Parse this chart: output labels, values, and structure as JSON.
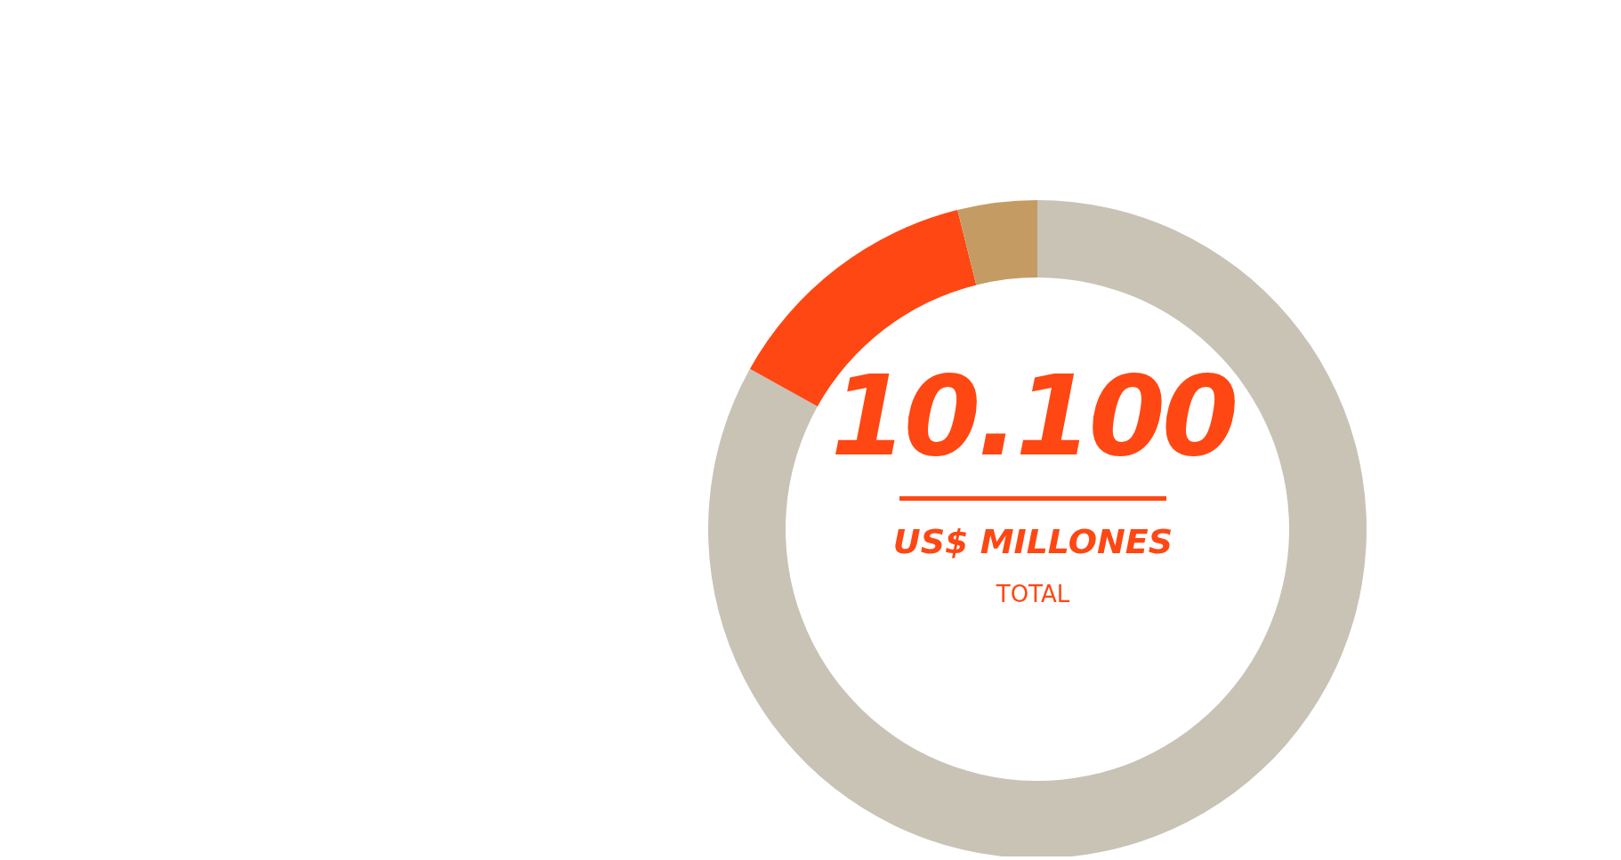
{
  "chart_data": {
    "type": "donut",
    "title": "10.100",
    "subtitle": "US$ MILLONES",
    "annotations": [
      "TOTAL"
    ],
    "categories": [
      null,
      null,
      null
    ],
    "values": [
      83.1,
      13.0,
      3.9
    ],
    "colors": [
      "#c9c3b6",
      "#ff4713",
      "#c49c63"
    ],
    "legend": false
  }
}
